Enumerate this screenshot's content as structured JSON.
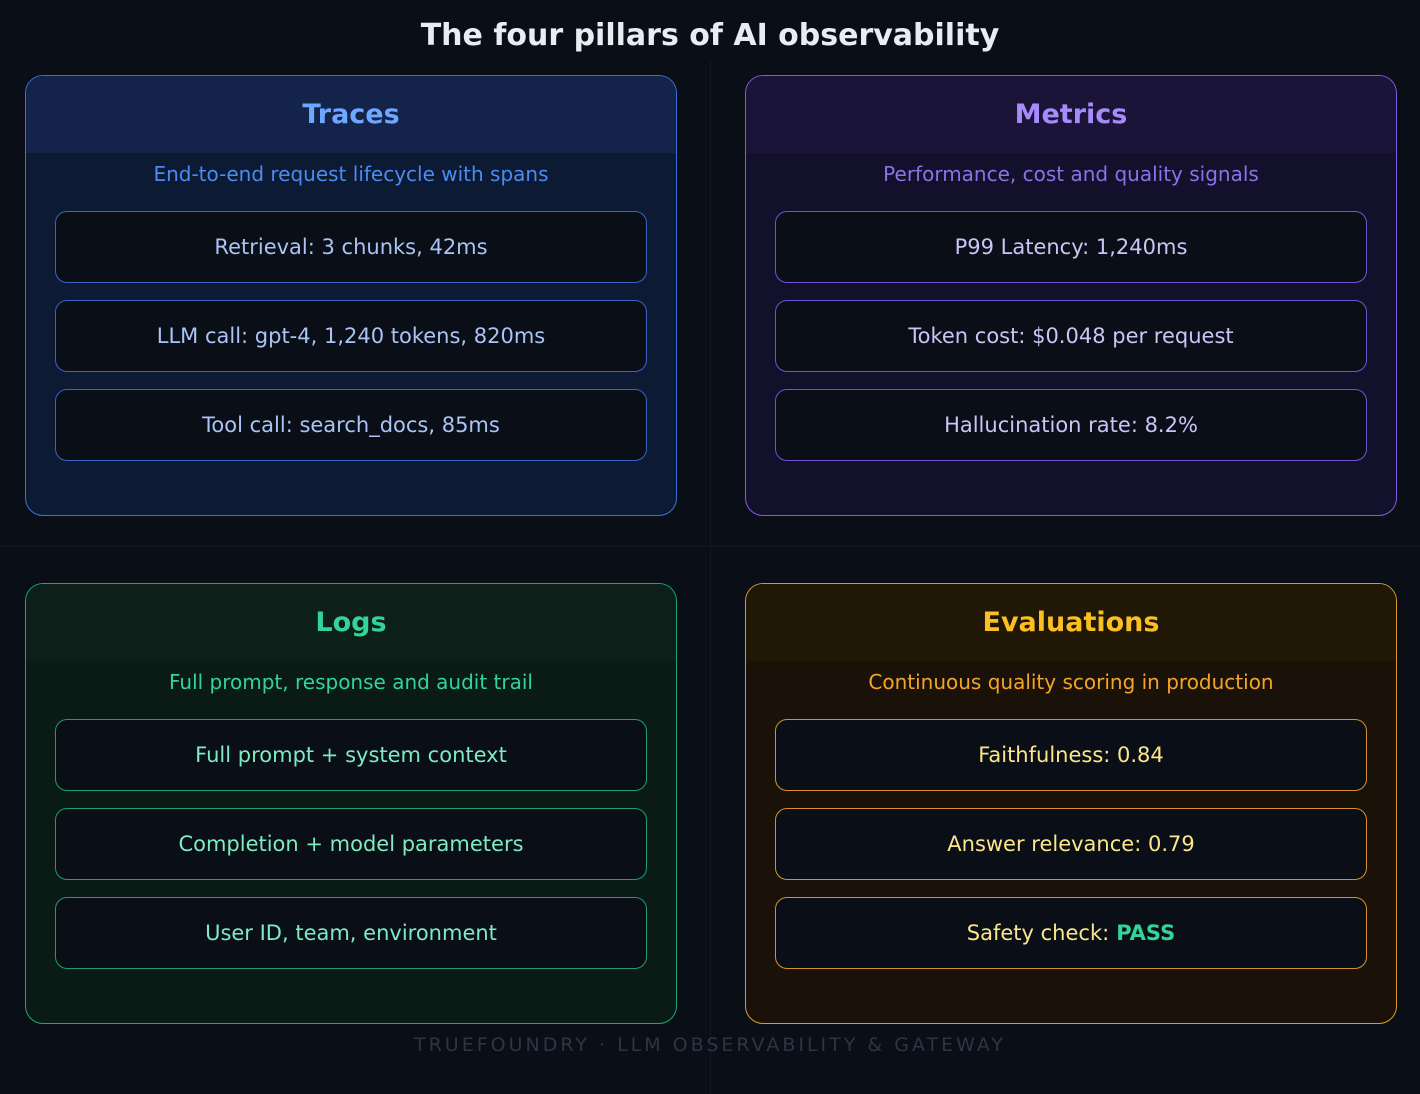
{
  "title": "The four pillars of AI observability",
  "pillars": [
    {
      "name": "Traces",
      "subtitle": "End-to-end request lifecycle with spans",
      "color": "blue",
      "items": [
        {
          "text": "Retrieval: 3 chunks, 42ms"
        },
        {
          "text": "LLM call: gpt-4, 1,240 tokens, 820ms"
        },
        {
          "text": "Tool call: search_docs, 85ms"
        }
      ]
    },
    {
      "name": "Metrics",
      "subtitle": "Performance, cost and quality signals",
      "color": "purple",
      "items": [
        {
          "text": "P99 Latency: 1,240ms"
        },
        {
          "text": "Token cost: $0.048 per request"
        },
        {
          "text": "Hallucination rate: 8.2%"
        }
      ]
    },
    {
      "name": "Logs",
      "subtitle": "Full prompt, response and audit trail",
      "color": "green",
      "items": [
        {
          "text": "Full prompt + system context"
        },
        {
          "text": "Completion + model parameters"
        },
        {
          "text": "User ID, team, environment"
        }
      ]
    },
    {
      "name": "Evaluations",
      "subtitle": "Continuous quality scoring in production",
      "color": "amber",
      "items": [
        {
          "text": "Faithfulness: 0.84"
        },
        {
          "text": "Answer relevance: 0.79"
        },
        {
          "text": "Safety check:",
          "status": "PASS"
        }
      ]
    }
  ],
  "footer": "TRUEFOUNDRY · LLM OBSERVABILITY & GATEWAY"
}
